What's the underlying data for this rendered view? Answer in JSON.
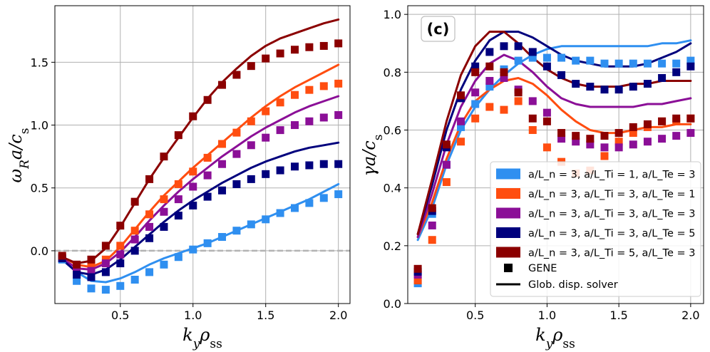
{
  "chart_data": [
    {
      "type": "line",
      "panel": "left",
      "xlabel": "k_y ρ_ss",
      "ylabel": "ω_R a / c_s",
      "xlim": [
        0.05,
        2.08
      ],
      "ylim": [
        -0.42,
        1.95
      ],
      "xticks": [
        0.5,
        1.0,
        1.5,
        2.0
      ],
      "xtick_labels": [
        "0.5",
        "1.0",
        "1.5",
        "2.0"
      ],
      "yticks": [
        0.0,
        0.5,
        1.0,
        1.5
      ],
      "ytick_labels": [
        "0.0",
        "0.5",
        "1.0",
        "1.5"
      ],
      "grid": true,
      "zero_line": true,
      "series": [
        {
          "name": "a/L_n = 3, a/L_Ti = 1, a/L_Te = 3",
          "color": "#2f8ff0",
          "line_x": [
            0.1,
            0.2,
            0.3,
            0.4,
            0.5,
            0.6,
            0.7,
            0.8,
            0.9,
            1.0,
            1.1,
            1.2,
            1.3,
            1.4,
            1.5,
            1.6,
            1.7,
            1.8,
            1.9,
            2.0
          ],
          "line_y": [
            -0.07,
            -0.17,
            -0.24,
            -0.25,
            -0.22,
            -0.17,
            -0.11,
            -0.06,
            -0.02,
            0.02,
            0.06,
            0.11,
            0.16,
            0.21,
            0.26,
            0.31,
            0.36,
            0.41,
            0.47,
            0.53
          ],
          "marker_x": [
            0.1,
            0.2,
            0.3,
            0.4,
            0.5,
            0.6,
            0.7,
            0.8,
            0.9,
            1.0,
            1.1,
            1.2,
            1.3,
            1.4,
            1.5,
            1.6,
            1.7,
            1.8,
            1.9,
            2.0
          ],
          "marker_y": [
            -0.07,
            -0.24,
            -0.3,
            -0.31,
            -0.28,
            -0.23,
            -0.17,
            -0.11,
            -0.05,
            0.01,
            0.06,
            0.11,
            0.16,
            0.21,
            0.25,
            0.3,
            0.34,
            0.38,
            0.42,
            0.45
          ]
        },
        {
          "name": "a/L_n = 3, a/L_Ti = 3, a/L_Te = 1",
          "color": "#ff4d10",
          "line_x": [
            0.1,
            0.2,
            0.3,
            0.4,
            0.5,
            0.6,
            0.7,
            0.8,
            0.9,
            1.0,
            1.1,
            1.2,
            1.3,
            1.4,
            1.5,
            1.6,
            1.7,
            1.8,
            1.9,
            2.0
          ],
          "line_y": [
            -0.05,
            -0.11,
            -0.13,
            -0.08,
            0.03,
            0.17,
            0.31,
            0.44,
            0.55,
            0.66,
            0.76,
            0.86,
            0.96,
            1.06,
            1.15,
            1.23,
            1.3,
            1.36,
            1.42,
            1.48
          ],
          "marker_x": [
            0.1,
            0.2,
            0.3,
            0.4,
            0.5,
            0.6,
            0.7,
            0.8,
            0.9,
            1.0,
            1.1,
            1.2,
            1.3,
            1.4,
            1.5,
            1.6,
            1.7,
            1.8,
            1.9,
            2.0
          ],
          "marker_y": [
            -0.05,
            -0.14,
            -0.12,
            -0.07,
            0.04,
            0.16,
            0.29,
            0.41,
            0.53,
            0.63,
            0.74,
            0.85,
            0.94,
            1.03,
            1.11,
            1.18,
            1.24,
            1.28,
            1.31,
            1.33
          ]
        },
        {
          "name": "a/L_n = 3, a/L_Ti = 3, a/L_Te = 3",
          "color": "#8b0f97",
          "line_x": [
            0.1,
            0.2,
            0.3,
            0.4,
            0.5,
            0.6,
            0.7,
            0.8,
            0.9,
            1.0,
            1.1,
            1.2,
            1.3,
            1.4,
            1.5,
            1.6,
            1.7,
            1.8,
            1.9,
            2.0
          ],
          "line_y": [
            -0.06,
            -0.14,
            -0.15,
            -0.1,
            -0.01,
            0.11,
            0.24,
            0.36,
            0.47,
            0.57,
            0.66,
            0.75,
            0.83,
            0.91,
            0.98,
            1.04,
            1.1,
            1.15,
            1.19,
            1.23
          ],
          "marker_x": [
            0.1,
            0.2,
            0.3,
            0.4,
            0.5,
            0.6,
            0.7,
            0.8,
            0.9,
            1.0,
            1.1,
            1.2,
            1.3,
            1.4,
            1.5,
            1.6,
            1.7,
            1.8,
            1.9,
            2.0
          ],
          "marker_y": [
            -0.06,
            -0.17,
            -0.16,
            -0.1,
            -0.03,
            0.09,
            0.19,
            0.31,
            0.41,
            0.51,
            0.6,
            0.69,
            0.77,
            0.84,
            0.9,
            0.96,
            1.0,
            1.03,
            1.06,
            1.08
          ]
        },
        {
          "name": "a/L_n = 3, a/L_Ti = 3, a/L_Te = 5",
          "color": "#00007d",
          "line_x": [
            0.1,
            0.2,
            0.3,
            0.4,
            0.5,
            0.6,
            0.7,
            0.8,
            0.9,
            1.0,
            1.1,
            1.2,
            1.3,
            1.4,
            1.5,
            1.6,
            1.7,
            1.8,
            1.9,
            2.0
          ],
          "line_y": [
            -0.07,
            -0.17,
            -0.19,
            -0.15,
            -0.07,
            0.03,
            0.13,
            0.23,
            0.32,
            0.4,
            0.47,
            0.54,
            0.6,
            0.66,
            0.71,
            0.75,
            0.79,
            0.82,
            0.84,
            0.86
          ],
          "marker_x": [
            0.1,
            0.2,
            0.3,
            0.4,
            0.5,
            0.6,
            0.7,
            0.8,
            0.9,
            1.0,
            1.1,
            1.2,
            1.3,
            1.4,
            1.5,
            1.6,
            1.7,
            1.8,
            1.9,
            2.0
          ],
          "marker_y": [
            -0.06,
            -0.19,
            -0.21,
            -0.17,
            -0.1,
            0.0,
            0.1,
            0.19,
            0.28,
            0.36,
            0.43,
            0.48,
            0.53,
            0.57,
            0.61,
            0.64,
            0.67,
            0.68,
            0.69,
            0.69
          ]
        },
        {
          "name": "a/L_n = 3, a/L_Ti = 5, a/L_Te = 3",
          "color": "#8b0000",
          "line_x": [
            0.1,
            0.2,
            0.3,
            0.4,
            0.5,
            0.6,
            0.7,
            0.8,
            0.9,
            1.0,
            1.1,
            1.2,
            1.3,
            1.4,
            1.5,
            1.6,
            1.7,
            1.8,
            1.9,
            2.0
          ],
          "line_y": [
            -0.05,
            -0.1,
            -0.08,
            0.02,
            0.19,
            0.38,
            0.57,
            0.74,
            0.9,
            1.06,
            1.21,
            1.34,
            1.45,
            1.55,
            1.63,
            1.69,
            1.73,
            1.77,
            1.81,
            1.84
          ],
          "marker_x": [
            0.1,
            0.2,
            0.3,
            0.4,
            0.5,
            0.6,
            0.7,
            0.8,
            0.9,
            1.0,
            1.1,
            1.2,
            1.3,
            1.4,
            1.5,
            1.6,
            1.7,
            1.8,
            1.9,
            2.0
          ],
          "marker_y": [
            -0.04,
            -0.11,
            -0.07,
            0.04,
            0.2,
            0.39,
            0.57,
            0.75,
            0.92,
            1.07,
            1.2,
            1.32,
            1.4,
            1.47,
            1.53,
            1.57,
            1.6,
            1.62,
            1.63,
            1.65
          ]
        }
      ]
    },
    {
      "type": "line",
      "panel": "right",
      "xlabel": "k_y ρ_ss",
      "ylabel": "γ a / c_s",
      "xlim": [
        0.03,
        2.09
      ],
      "ylim": [
        0.0,
        1.03
      ],
      "xticks": [
        0.5,
        1.0,
        1.5,
        2.0
      ],
      "xtick_labels": [
        "0.5",
        "1.0",
        "1.5",
        "2.0"
      ],
      "yticks": [
        0.0,
        0.2,
        0.4,
        0.6,
        0.8,
        1.0
      ],
      "ytick_labels": [
        "0.0",
        "0.2",
        "0.4",
        "0.6",
        "0.8",
        "1.0"
      ],
      "grid": true,
      "annotation": "(c)",
      "legend_position": "lower-right",
      "legend_extra": {
        "gene_label": "GENE",
        "solver_label": "Glob. disp. solver"
      },
      "series": [
        {
          "name": "a/L_n = 3, a/L_Ti = 1, a/L_Te = 3",
          "color": "#2f8ff0",
          "line_x": [
            0.1,
            0.2,
            0.3,
            0.4,
            0.5,
            0.6,
            0.7,
            0.8,
            0.9,
            1.0,
            1.1,
            1.2,
            1.3,
            1.4,
            1.5,
            1.6,
            1.7,
            1.8,
            1.9,
            2.0
          ],
          "line_y": [
            0.22,
            0.33,
            0.48,
            0.6,
            0.68,
            0.74,
            0.79,
            0.83,
            0.86,
            0.88,
            0.89,
            0.89,
            0.89,
            0.89,
            0.89,
            0.89,
            0.89,
            0.9,
            0.9,
            0.91
          ],
          "marker_x": [
            0.1,
            0.2,
            0.3,
            0.4,
            0.5,
            0.6,
            0.7,
            0.8,
            0.9,
            1.0,
            1.1,
            1.2,
            1.3,
            1.4,
            1.5,
            1.6,
            1.7,
            1.8,
            1.9,
            2.0
          ],
          "marker_y": [
            0.07,
            0.31,
            0.48,
            0.61,
            0.69,
            0.75,
            0.81,
            0.84,
            0.85,
            0.85,
            0.85,
            0.84,
            0.84,
            0.83,
            0.83,
            0.83,
            0.83,
            0.83,
            0.83,
            0.84
          ]
        },
        {
          "name": "a/L_n = 3, a/L_Ti = 3, a/L_Te = 1",
          "color": "#ff4d10",
          "line_x": [
            0.1,
            0.2,
            0.3,
            0.4,
            0.5,
            0.6,
            0.7,
            0.8,
            0.9,
            1.0,
            1.1,
            1.2,
            1.3,
            1.4,
            1.5,
            1.6,
            1.7,
            1.8,
            1.9,
            2.0
          ],
          "line_y": [
            0.23,
            0.35,
            0.5,
            0.62,
            0.7,
            0.74,
            0.77,
            0.78,
            0.76,
            0.72,
            0.67,
            0.63,
            0.6,
            0.59,
            0.59,
            0.6,
            0.61,
            0.61,
            0.62,
            0.62
          ],
          "marker_x": [
            0.1,
            0.2,
            0.3,
            0.4,
            0.5,
            0.6,
            0.7,
            0.8,
            0.9,
            1.0,
            1.1,
            1.2,
            1.3,
            1.4,
            1.5,
            1.6,
            1.7,
            1.8,
            1.9,
            2.0
          ],
          "marker_y": [
            0.08,
            0.22,
            0.42,
            0.56,
            0.64,
            0.68,
            0.67,
            0.7,
            0.6,
            0.54,
            0.49,
            0.45,
            0.46,
            0.51,
            0.56,
            0.59,
            0.61,
            0.63,
            0.63,
            0.64
          ]
        },
        {
          "name": "a/L_n = 3, a/L_Ti = 3, a/L_Te = 3",
          "color": "#8b0f97",
          "line_x": [
            0.1,
            0.2,
            0.3,
            0.4,
            0.5,
            0.6,
            0.7,
            0.8,
            0.9,
            1.0,
            1.1,
            1.2,
            1.3,
            1.4,
            1.5,
            1.6,
            1.7,
            1.8,
            1.9,
            2.0
          ],
          "line_y": [
            0.23,
            0.38,
            0.55,
            0.68,
            0.77,
            0.83,
            0.86,
            0.84,
            0.8,
            0.75,
            0.71,
            0.69,
            0.68,
            0.68,
            0.68,
            0.68,
            0.69,
            0.69,
            0.7,
            0.71
          ],
          "marker_x": [
            0.1,
            0.2,
            0.3,
            0.4,
            0.5,
            0.6,
            0.7,
            0.8,
            0.9,
            1.0,
            1.1,
            1.2,
            1.3,
            1.4,
            1.5,
            1.6,
            1.7,
            1.8,
            1.9,
            2.0
          ],
          "marker_y": [
            0.1,
            0.27,
            0.48,
            0.63,
            0.73,
            0.77,
            0.78,
            0.74,
            0.7,
            0.66,
            0.57,
            0.56,
            0.55,
            0.54,
            0.54,
            0.55,
            0.56,
            0.57,
            0.58,
            0.59
          ]
        },
        {
          "name": "a/L_n = 3, a/L_Ti = 3, a/L_Te = 5",
          "color": "#00007d",
          "line_x": [
            0.1,
            0.2,
            0.3,
            0.4,
            0.5,
            0.6,
            0.7,
            0.8,
            0.9,
            1.0,
            1.1,
            1.2,
            1.3,
            1.4,
            1.5,
            1.6,
            1.7,
            1.8,
            1.9,
            2.0
          ],
          "line_y": [
            0.24,
            0.41,
            0.6,
            0.74,
            0.84,
            0.91,
            0.94,
            0.94,
            0.92,
            0.89,
            0.86,
            0.84,
            0.83,
            0.82,
            0.82,
            0.82,
            0.83,
            0.85,
            0.87,
            0.9
          ],
          "marker_x": [
            0.1,
            0.2,
            0.3,
            0.4,
            0.5,
            0.6,
            0.7,
            0.8,
            0.9,
            1.0,
            1.1,
            1.2,
            1.3,
            1.4,
            1.5,
            1.6,
            1.7,
            1.8,
            1.9,
            2.0
          ],
          "marker_y": [
            0.11,
            0.32,
            0.54,
            0.71,
            0.82,
            0.87,
            0.89,
            0.89,
            0.87,
            0.82,
            0.79,
            0.76,
            0.75,
            0.74,
            0.74,
            0.75,
            0.76,
            0.78,
            0.8,
            0.82
          ]
        },
        {
          "name": "a/L_n = 3, a/L_Ti = 5, a/L_Te = 3",
          "color": "#8b0000",
          "line_x": [
            0.1,
            0.2,
            0.3,
            0.4,
            0.5,
            0.6,
            0.7,
            0.8,
            0.9,
            1.0,
            1.1,
            1.2,
            1.3,
            1.4,
            1.5,
            1.6,
            1.7,
            1.8,
            1.9,
            2.0
          ],
          "line_y": [
            0.24,
            0.43,
            0.63,
            0.79,
            0.89,
            0.94,
            0.94,
            0.9,
            0.85,
            0.81,
            0.78,
            0.76,
            0.75,
            0.75,
            0.75,
            0.76,
            0.76,
            0.77,
            0.77,
            0.77
          ],
          "marker_x": [
            0.1,
            0.2,
            0.3,
            0.4,
            0.5,
            0.6,
            0.7,
            0.8,
            0.9,
            1.0,
            1.1,
            1.2,
            1.3,
            1.4,
            1.5,
            1.6,
            1.7,
            1.8,
            1.9,
            2.0
          ],
          "marker_y": [
            0.12,
            0.33,
            0.55,
            0.72,
            0.8,
            0.82,
            0.8,
            0.73,
            0.64,
            0.63,
            0.59,
            0.58,
            0.57,
            0.58,
            0.59,
            0.61,
            0.62,
            0.63,
            0.64,
            0.64
          ]
        }
      ]
    }
  ]
}
